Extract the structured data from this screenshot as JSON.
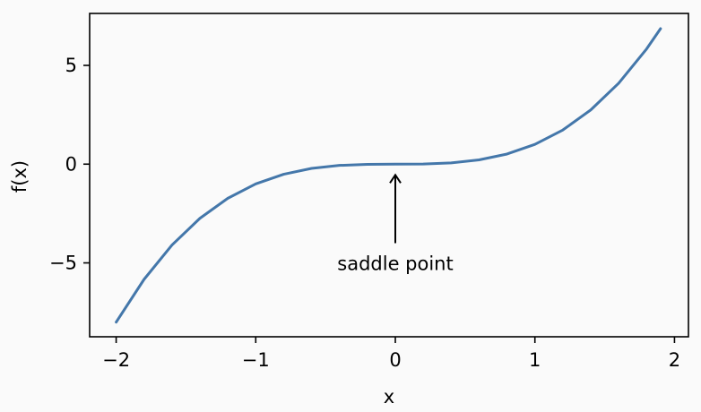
{
  "chart_data": {
    "type": "line",
    "title": "",
    "xlabel": "x",
    "ylabel": "f(x)",
    "xlim": [
      -2.19,
      2.1
    ],
    "ylim": [
      -8.74,
      7.63
    ],
    "xticks": [
      -2,
      -1,
      0,
      1,
      2
    ],
    "xtick_labels": [
      "−2",
      "−1",
      "0",
      "1",
      "2"
    ],
    "yticks": [
      5,
      0,
      -5
    ],
    "ytick_labels": [
      "5",
      "0",
      "−5"
    ],
    "grid": false,
    "legend": "none",
    "series": [
      {
        "color": "#4477aa",
        "x": [
          -2.0,
          -1.8,
          -1.6,
          -1.4,
          -1.2,
          -1.0,
          -0.8,
          -0.6,
          -0.4,
          -0.2,
          0.0,
          0.2,
          0.4,
          0.6,
          0.8,
          1.0,
          1.2,
          1.4,
          1.6,
          1.8,
          1.9
        ],
        "y": [
          -8.0,
          -5.832,
          -4.096,
          -2.744,
          -1.728,
          -1.0,
          -0.512,
          -0.216,
          -0.064,
          -0.008,
          0.0,
          0.008,
          0.064,
          0.216,
          0.512,
          1.0,
          1.728,
          2.744,
          4.096,
          5.832,
          6.859
        ]
      }
    ],
    "annotations": [
      {
        "text": "saddle point",
        "xy": [
          0,
          0
        ],
        "xytext": [
          0,
          -5
        ]
      }
    ]
  }
}
